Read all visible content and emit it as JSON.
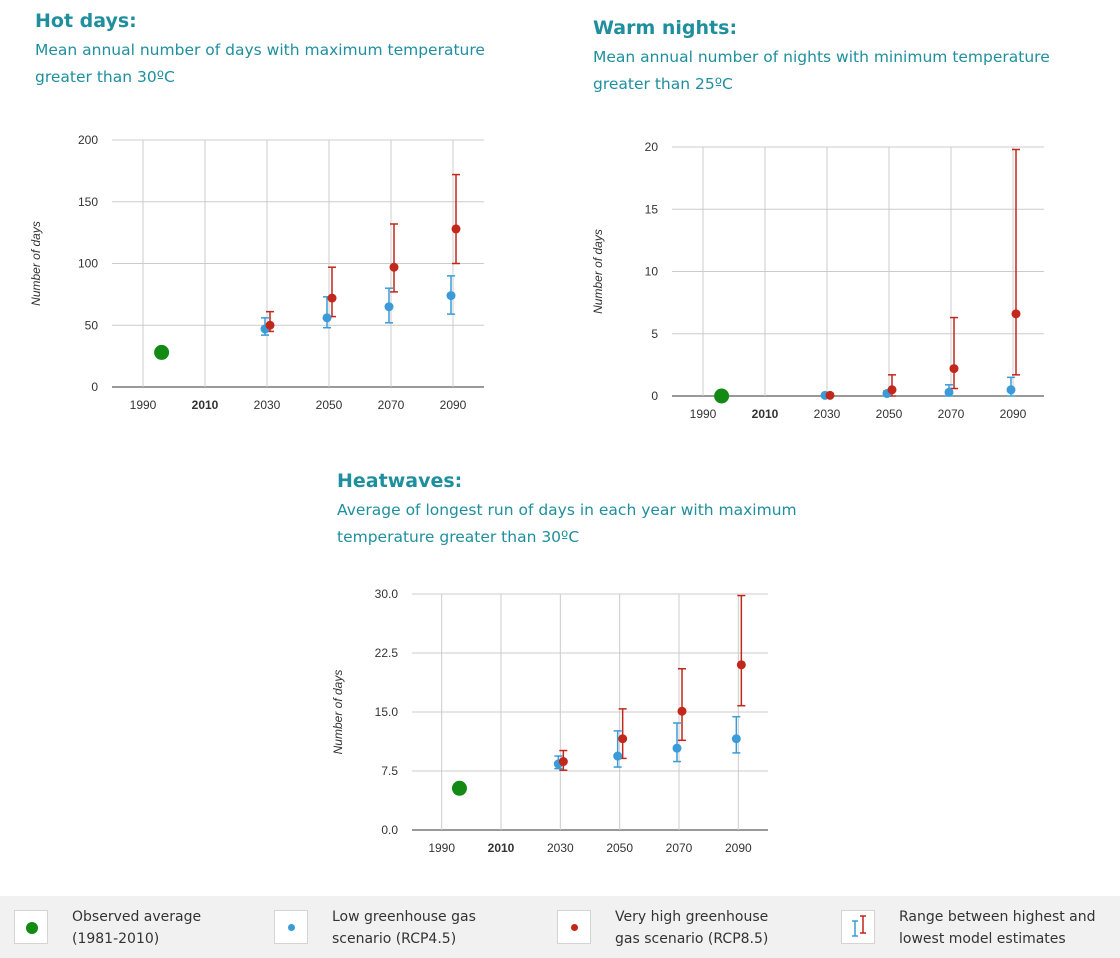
{
  "colors": {
    "heading": "#1f8f9e",
    "observed": "#138a13",
    "low": "#3b9bd8",
    "high": "#c1271b",
    "grid": "#cccccc",
    "legend_bg": "#f1f1f1"
  },
  "panels": [
    {
      "title": "Hot days:",
      "desc_line1": "Mean annual number of days with maximum temperature",
      "desc_line2": "greater than 30ºC"
    },
    {
      "title": "Warm nights:",
      "desc_line1": "Mean annual number of nights with minimum temperature",
      "desc_line2": "greater than 25ºC"
    },
    {
      "title": "Heatwaves:",
      "desc_line1": "Average of longest run of days in each year with maximum",
      "desc_line2": "temperature greater than 30ºC"
    }
  ],
  "legend": [
    {
      "line1": "Observed average",
      "line2": "(1981-2010)",
      "icon": "green-dot-icon"
    },
    {
      "line1": "Low greenhouse gas",
      "line2": "scenario (RCP4.5)",
      "icon": "blue-dot-icon"
    },
    {
      "line1": "Very high greenhouse",
      "line2": "gas scenario (RCP8.5)",
      "icon": "red-dot-icon"
    },
    {
      "line1": "Range between highest and",
      "line2": "lowest model estimates",
      "icon": "range-bar-icon"
    }
  ],
  "chart_data": [
    {
      "type": "scatter",
      "title": "Hot days:",
      "ylabel": "Number of days",
      "xlabel": "",
      "x_ticks": [
        "1990",
        "2010",
        "2030",
        "2050",
        "2070",
        "2090"
      ],
      "x_tick_bold": "2010",
      "xlim": [
        1980,
        2100
      ],
      "ylim": [
        0,
        200
      ],
      "y_ticks": [
        "0",
        "50",
        "100",
        "150",
        "200"
      ],
      "grid": true,
      "observed": {
        "x": 1996,
        "y": 28
      },
      "series": [
        {
          "name": "Low greenhouse gas scenario (RCP4.5)",
          "key": "low",
          "x": [
            2030,
            2050,
            2070,
            2090
          ],
          "y": [
            47,
            56,
            65,
            74
          ],
          "low": [
            42,
            48,
            52,
            59
          ],
          "high": [
            56,
            73,
            80,
            90
          ]
        },
        {
          "name": "Very high greenhouse gas scenario (RCP8.5)",
          "key": "high",
          "x": [
            2030,
            2050,
            2070,
            2090
          ],
          "y": [
            50,
            72,
            97,
            128
          ],
          "low": [
            45,
            57,
            77,
            100
          ],
          "high": [
            61,
            97,
            132,
            172
          ]
        }
      ]
    },
    {
      "type": "scatter",
      "title": "Warm nights:",
      "ylabel": "Number of days",
      "xlabel": "",
      "x_ticks": [
        "1990",
        "2010",
        "2030",
        "2050",
        "2070",
        "2090"
      ],
      "x_tick_bold": "2010",
      "xlim": [
        1980,
        2100
      ],
      "ylim": [
        0,
        20
      ],
      "y_ticks": [
        "0",
        "5",
        "10",
        "15",
        "20"
      ],
      "grid": true,
      "observed": {
        "x": 1996,
        "y": 0
      },
      "series": [
        {
          "name": "Low greenhouse gas scenario (RCP4.5)",
          "key": "low",
          "x": [
            2030,
            2050,
            2070,
            2090
          ],
          "y": [
            0.05,
            0.2,
            0.3,
            0.5
          ],
          "low": [
            0,
            0,
            0,
            0
          ],
          "high": [
            0.1,
            0.4,
            0.9,
            1.5
          ]
        },
        {
          "name": "Very high greenhouse gas scenario (RCP8.5)",
          "key": "high",
          "x": [
            2030,
            2050,
            2070,
            2090
          ],
          "y": [
            0.05,
            0.5,
            2.2,
            6.6
          ],
          "low": [
            0,
            0,
            0.6,
            1.7
          ],
          "high": [
            0.2,
            1.7,
            6.3,
            19.8
          ]
        }
      ]
    },
    {
      "type": "scatter",
      "title": "Heatwaves:",
      "ylabel": "Number of days",
      "xlabel": "",
      "x_ticks": [
        "1990",
        "2010",
        "2030",
        "2050",
        "2070",
        "2090"
      ],
      "x_tick_bold": "2010",
      "xlim": [
        1980,
        2100
      ],
      "ylim": [
        0,
        30
      ],
      "y_ticks": [
        "0.0",
        "7.5",
        "15.0",
        "22.5",
        "30.0"
      ],
      "grid": true,
      "observed": {
        "x": 1996,
        "y": 5.3
      },
      "series": [
        {
          "name": "Low greenhouse gas scenario (RCP4.5)",
          "key": "low",
          "x": [
            2030,
            2050,
            2070,
            2090
          ],
          "y": [
            8.4,
            9.4,
            10.4,
            11.6
          ],
          "low": [
            7.8,
            8.0,
            8.7,
            9.8
          ],
          "high": [
            9.4,
            12.6,
            13.6,
            14.4
          ]
        },
        {
          "name": "Very high greenhouse gas scenario (RCP8.5)",
          "key": "high",
          "x": [
            2030,
            2050,
            2070,
            2090
          ],
          "y": [
            8.7,
            11.6,
            15.1,
            21.0
          ],
          "low": [
            7.6,
            9.1,
            11.4,
            15.8
          ],
          "high": [
            10.1,
            15.4,
            20.5,
            29.8
          ]
        }
      ]
    }
  ]
}
